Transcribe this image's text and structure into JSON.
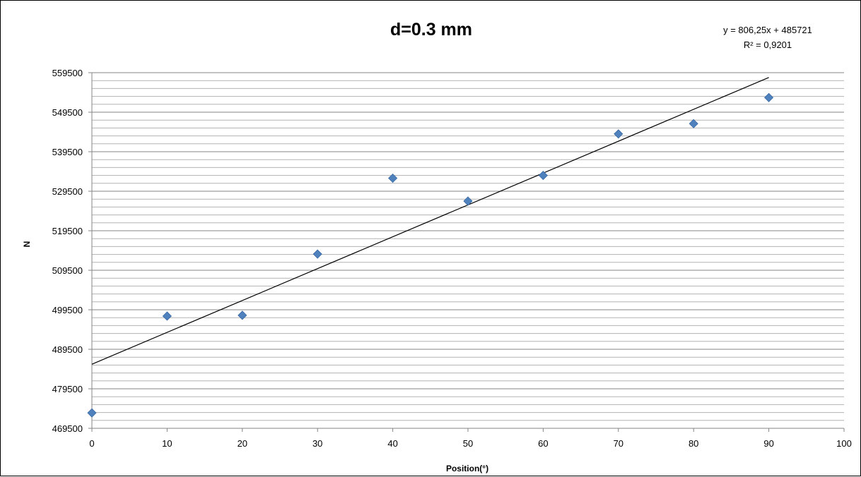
{
  "chart_data": {
    "type": "scatter",
    "title": "d=0.3 mm",
    "xlabel": "Position(°)",
    "ylabel": "N",
    "xlim": [
      0,
      100
    ],
    "ylim": [
      469500,
      559500
    ],
    "x_ticks": [
      "0",
      "10",
      "20",
      "30",
      "40",
      "50",
      "60",
      "70",
      "80",
      "90",
      "100"
    ],
    "y_ticks": [
      "559500",
      "549500",
      "539500",
      "529500",
      "519500",
      "509500",
      "499500",
      "489500",
      "479500",
      "469500"
    ],
    "grid": "horizontal",
    "series": [
      {
        "marker": "diamond",
        "color": "#4f81bd",
        "x": [
          0,
          10,
          20,
          30,
          40,
          50,
          60,
          70,
          80,
          90
        ],
        "y": [
          473400,
          497900,
          498100,
          513600,
          532800,
          527000,
          533500,
          544000,
          546600,
          553200
        ]
      }
    ],
    "trendline": {
      "type": "linear",
      "slope": 806.25,
      "intercept": 485721,
      "x_range": [
        0,
        90
      ],
      "color": "#000000",
      "equation": "y = 806,25x + 485721",
      "r_squared": "R² = 0,9201"
    }
  }
}
